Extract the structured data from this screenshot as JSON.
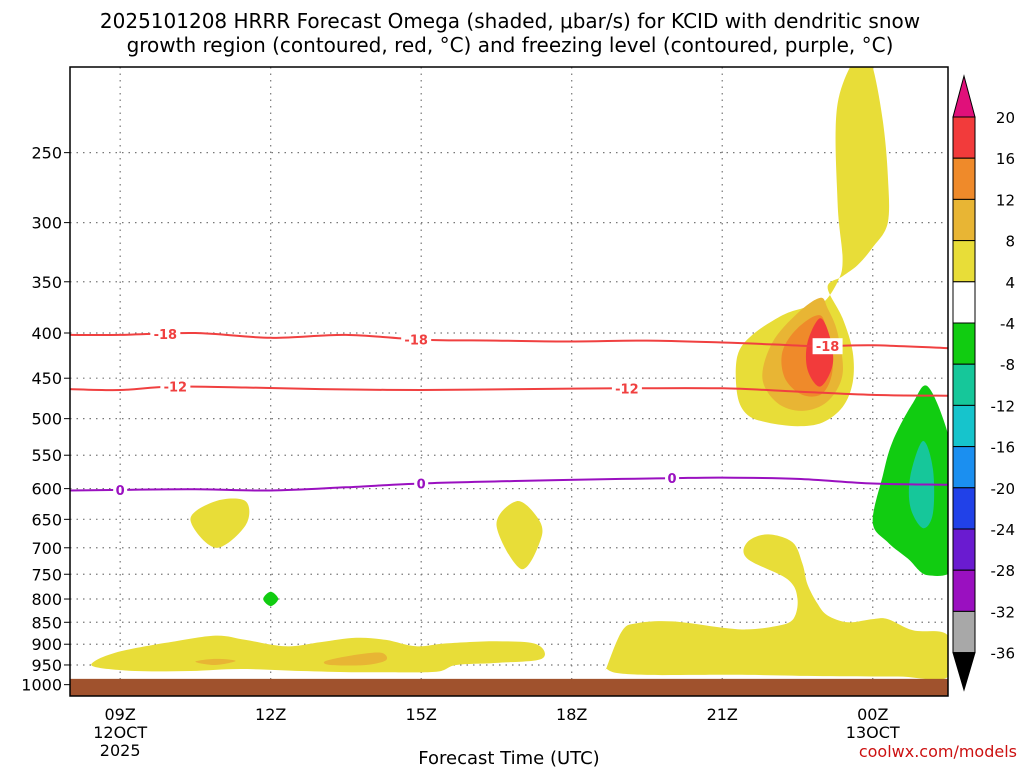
{
  "chart_data": {
    "type": "contour",
    "title_line1": "2025101208 HRRR Forecast Omega (shaded, μbar/s) for KCID with dendritic snow",
    "title_line2": "growth region (contoured, red, °C) and freezing level (contoured, purple, °C)",
    "xlabel": "Forecast Time (UTC)",
    "x_range_hours": [
      8,
      25.5
    ],
    "y_range_hPa": [
      200,
      1030
    ],
    "y_ticks": [
      250,
      300,
      350,
      400,
      450,
      500,
      550,
      600,
      650,
      700,
      750,
      800,
      850,
      900,
      950,
      1000
    ],
    "x_ticks": [
      {
        "hour": 9,
        "line1": "09Z",
        "line2": "12OCT",
        "line3": "2025"
      },
      {
        "hour": 12,
        "line1": "12Z",
        "line2": "",
        "line3": ""
      },
      {
        "hour": 15,
        "line1": "15Z",
        "line2": "",
        "line3": ""
      },
      {
        "hour": 18,
        "line1": "18Z",
        "line2": "",
        "line3": ""
      },
      {
        "hour": 21,
        "line1": "21Z",
        "line2": "",
        "line3": ""
      },
      {
        "hour": 24,
        "line1": "00Z",
        "line2": "13OCT",
        "line3": ""
      }
    ],
    "colorbar": {
      "labels": [
        "20",
        "16",
        "12",
        "8",
        "4",
        "-4",
        "-8",
        "-12",
        "-16",
        "-20",
        "-24",
        "-28",
        "-32",
        "-36"
      ],
      "colors": {
        "top_arrow": "#e0107a",
        "b16_20": "#f23b3b",
        "b12_16": "#ef8a2a",
        "b8_12": "#e8b534",
        "b4_8": "#e8dd38",
        "b_neg4_4": "#ffffff",
        "bneg8_neg4": "#11cc11",
        "bneg12_neg8": "#16c79a",
        "bneg16_neg12": "#16c4cc",
        "bneg20_neg16": "#1b8ff0",
        "bneg24_neg20": "#2141e8",
        "bneg28_neg24": "#6a1bd0",
        "bneg32_neg28": "#9a10c0",
        "bneg36_neg32": "#a8a8a8",
        "bottom_arrow": "#000000"
      }
    },
    "surface_color": "#a0522d",
    "surface_pressure_hPa": 985,
    "contours": [
      {
        "name": "dgz-minus-18",
        "label": "-18",
        "color": "#f04040",
        "points_hour_hPa": [
          [
            8,
            402
          ],
          [
            9,
            402
          ],
          [
            10.5,
            400
          ],
          [
            12,
            405
          ],
          [
            13.5,
            402
          ],
          [
            15,
            407
          ],
          [
            16.5,
            408
          ],
          [
            18,
            409
          ],
          [
            19.5,
            408
          ],
          [
            21,
            410
          ],
          [
            22,
            412
          ],
          [
            22.9,
            414
          ],
          [
            24,
            413
          ],
          [
            25.5,
            416
          ]
        ]
      },
      {
        "name": "dgz-minus-12",
        "label": "-12",
        "color": "#f04040",
        "points_hour_hPa": [
          [
            8,
            463
          ],
          [
            9,
            464
          ],
          [
            10,
            460
          ],
          [
            11.5,
            461
          ],
          [
            13,
            463
          ],
          [
            15,
            464
          ],
          [
            17,
            463
          ],
          [
            19,
            462
          ],
          [
            21,
            462
          ],
          [
            22.5,
            466
          ],
          [
            24,
            470
          ],
          [
            25.5,
            471
          ]
        ]
      },
      {
        "name": "freezing-level-0",
        "label": "0",
        "color": "#9a10c0",
        "points_hour_hPa": [
          [
            8,
            603
          ],
          [
            9,
            602
          ],
          [
            10.5,
            601
          ],
          [
            12,
            603
          ],
          [
            13.5,
            598
          ],
          [
            15,
            592
          ],
          [
            17,
            588
          ],
          [
            19,
            585
          ],
          [
            20,
            584
          ],
          [
            21,
            583
          ],
          [
            22.5,
            585
          ],
          [
            24,
            592
          ],
          [
            25.5,
            594
          ]
        ]
      }
    ],
    "contour_labels": [
      {
        "name": "label-18-a",
        "text": "-18",
        "hour": 9.9,
        "hPa": 401,
        "color": "#f04040"
      },
      {
        "name": "label-18-b",
        "text": "-18",
        "hour": 14.9,
        "hPa": 407,
        "color": "#f04040"
      },
      {
        "name": "label-18-c",
        "text": "-18",
        "hour": 23.1,
        "hPa": 414,
        "color": "#f04040"
      },
      {
        "name": "label-12-a",
        "text": "-12",
        "hour": 10.1,
        "hPa": 460,
        "color": "#f04040"
      },
      {
        "name": "label-12-b",
        "text": "-12",
        "hour": 19.1,
        "hPa": 462,
        "color": "#f04040"
      },
      {
        "name": "label-0-a",
        "text": "0",
        "hour": 9.0,
        "hPa": 602,
        "color": "#9a10c0"
      },
      {
        "name": "label-0-b",
        "text": "0",
        "hour": 15.0,
        "hPa": 592,
        "color": "#9a10c0"
      },
      {
        "name": "label-0-c",
        "text": "0",
        "hour": 20.0,
        "hPa": 584,
        "color": "#9a10c0"
      }
    ],
    "shaded_regions": [
      {
        "name": "upper-updraft-4-8",
        "color": "#e8dd38",
        "points_hour_hPa": [
          [
            23.8,
            190
          ],
          [
            23.3,
            220
          ],
          [
            23.3,
            285
          ],
          [
            23.4,
            330
          ],
          [
            23.3,
            350
          ],
          [
            23.0,
            370
          ],
          [
            22.6,
            375
          ],
          [
            22.2,
            382
          ],
          [
            21.6,
            402
          ],
          [
            21.3,
            425
          ],
          [
            21.3,
            470
          ],
          [
            21.5,
            495
          ],
          [
            21.9,
            505
          ],
          [
            22.5,
            510
          ],
          [
            23.0,
            505
          ],
          [
            23.4,
            485
          ],
          [
            23.6,
            455
          ],
          [
            23.6,
            420
          ],
          [
            23.4,
            385
          ],
          [
            23.1,
            355
          ],
          [
            23.4,
            345
          ],
          [
            23.7,
            335
          ],
          [
            24.0,
            320
          ],
          [
            24.3,
            300
          ],
          [
            24.3,
            265
          ],
          [
            24.2,
            230
          ],
          [
            24.0,
            200
          ]
        ]
      },
      {
        "name": "upper-updraft-8-12",
        "color": "#e8b534",
        "points_hour_hPa": [
          [
            22.95,
            365
          ],
          [
            22.5,
            380
          ],
          [
            22.0,
            410
          ],
          [
            21.8,
            450
          ],
          [
            22.1,
            480
          ],
          [
            22.6,
            490
          ],
          [
            23.1,
            478
          ],
          [
            23.4,
            445
          ],
          [
            23.3,
            400
          ],
          [
            23.1,
            375
          ]
        ]
      },
      {
        "name": "upper-updraft-12-16",
        "color": "#ef8a2a",
        "points_hour_hPa": [
          [
            22.95,
            382
          ],
          [
            22.5,
            395
          ],
          [
            22.2,
            420
          ],
          [
            22.25,
            450
          ],
          [
            22.6,
            470
          ],
          [
            23.0,
            468
          ],
          [
            23.2,
            440
          ],
          [
            23.1,
            405
          ]
        ]
      },
      {
        "name": "upper-updraft-16-20",
        "color": "#f23b3b",
        "points_hour_hPa": [
          [
            22.95,
            385
          ],
          [
            22.7,
            410
          ],
          [
            22.7,
            440
          ],
          [
            22.95,
            460
          ],
          [
            23.2,
            435
          ],
          [
            23.15,
            405
          ]
        ]
      },
      {
        "name": "lower-updraft-a",
        "color": "#e8dd38",
        "points_hour_hPa": [
          [
            10.9,
            620
          ],
          [
            10.4,
            650
          ],
          [
            10.9,
            700
          ],
          [
            11.5,
            660
          ],
          [
            11.5,
            620
          ]
        ]
      },
      {
        "name": "lower-updraft-b",
        "color": "#e8dd38",
        "points_hour_hPa": [
          [
            16.9,
            620
          ],
          [
            16.5,
            660
          ],
          [
            17.0,
            740
          ],
          [
            17.4,
            680
          ],
          [
            17.3,
            645
          ]
        ]
      },
      {
        "name": "pbl-updraft-west",
        "color": "#e8dd38",
        "points_hour_hPa": [
          [
            8.5,
            940
          ],
          [
            8.9,
            920
          ],
          [
            9.5,
            905
          ],
          [
            10.0,
            895
          ],
          [
            10.9,
            880
          ],
          [
            11.5,
            890
          ],
          [
            12.3,
            905
          ],
          [
            13.0,
            895
          ],
          [
            13.7,
            885
          ],
          [
            14.3,
            890
          ],
          [
            14.9,
            905
          ],
          [
            15.5,
            898
          ],
          [
            16.5,
            893
          ],
          [
            17.3,
            900
          ],
          [
            17.4,
            935
          ],
          [
            16.5,
            945
          ],
          [
            15.7,
            950
          ],
          [
            15.3,
            967
          ],
          [
            14.3,
            968
          ],
          [
            13.6,
            968
          ],
          [
            12.6,
            965
          ],
          [
            11.4,
            960
          ],
          [
            10.4,
            965
          ],
          [
            9.3,
            965
          ],
          [
            8.5,
            955
          ]
        ]
      },
      {
        "name": "pbl-updraft-west-8",
        "color": "#e8b534",
        "points_hour_hPa": [
          [
            13.1,
            940
          ],
          [
            13.7,
            925
          ],
          [
            14.2,
            920
          ],
          [
            14.3,
            938
          ],
          [
            13.9,
            950
          ],
          [
            13.2,
            950
          ]
        ]
      },
      {
        "name": "pbl-updraft-west-8b",
        "color": "#e8b534",
        "points_hour_hPa": [
          [
            10.5,
            942
          ],
          [
            10.9,
            935
          ],
          [
            11.3,
            940
          ],
          [
            10.9,
            950
          ]
        ]
      },
      {
        "name": "pbl-updraft-east",
        "color": "#e8dd38",
        "points_hour_hPa": [
          [
            18.9,
            970
          ],
          [
            18.7,
            960
          ],
          [
            18.7,
            955
          ],
          [
            19.0,
            870
          ],
          [
            19.3,
            852
          ],
          [
            20.0,
            848
          ],
          [
            21.0,
            862
          ],
          [
            21.5,
            866
          ],
          [
            22.0,
            860
          ],
          [
            22.4,
            845
          ],
          [
            22.5,
            800
          ],
          [
            22.3,
            760
          ],
          [
            21.5,
            720
          ],
          [
            21.5,
            690
          ],
          [
            21.9,
            676
          ],
          [
            22.4,
            690
          ],
          [
            22.6,
            730
          ],
          [
            22.7,
            770
          ],
          [
            22.9,
            810
          ],
          [
            23.1,
            835
          ],
          [
            23.5,
            850
          ],
          [
            24.0,
            843
          ],
          [
            24.3,
            843
          ],
          [
            24.8,
            868
          ],
          [
            25.5,
            880
          ],
          [
            25.5,
            980
          ],
          [
            24.5,
            979
          ],
          [
            23.0,
            978
          ],
          [
            21.5,
            975
          ],
          [
            20.5,
            975
          ],
          [
            19.5,
            975
          ]
        ]
      },
      {
        "name": "downdraft-minus4",
        "color": "#11cc11",
        "points_hour_hPa": [
          [
            25.1,
            460
          ],
          [
            24.8,
            480
          ],
          [
            24.4,
            530
          ],
          [
            24.2,
            580
          ],
          [
            24.0,
            655
          ],
          [
            24.3,
            690
          ],
          [
            24.7,
            720
          ],
          [
            25.1,
            752
          ],
          [
            25.7,
            730
          ],
          [
            25.7,
            600
          ],
          [
            25.5,
            520
          ]
        ]
      },
      {
        "name": "downdraft-minus8",
        "color": "#16c79a",
        "points_hour_hPa": [
          [
            25.0,
            530
          ],
          [
            24.75,
            580
          ],
          [
            24.75,
            630
          ],
          [
            25.0,
            665
          ],
          [
            25.2,
            640
          ],
          [
            25.2,
            570
          ]
        ]
      },
      {
        "name": "small-downdraft",
        "color": "#11cc11",
        "points_hour_hPa": [
          [
            12,
            785
          ],
          [
            11.85,
            800
          ],
          [
            12,
            815
          ],
          [
            12.15,
            800
          ]
        ]
      }
    ]
  },
  "credit": "coolwx.com/models"
}
